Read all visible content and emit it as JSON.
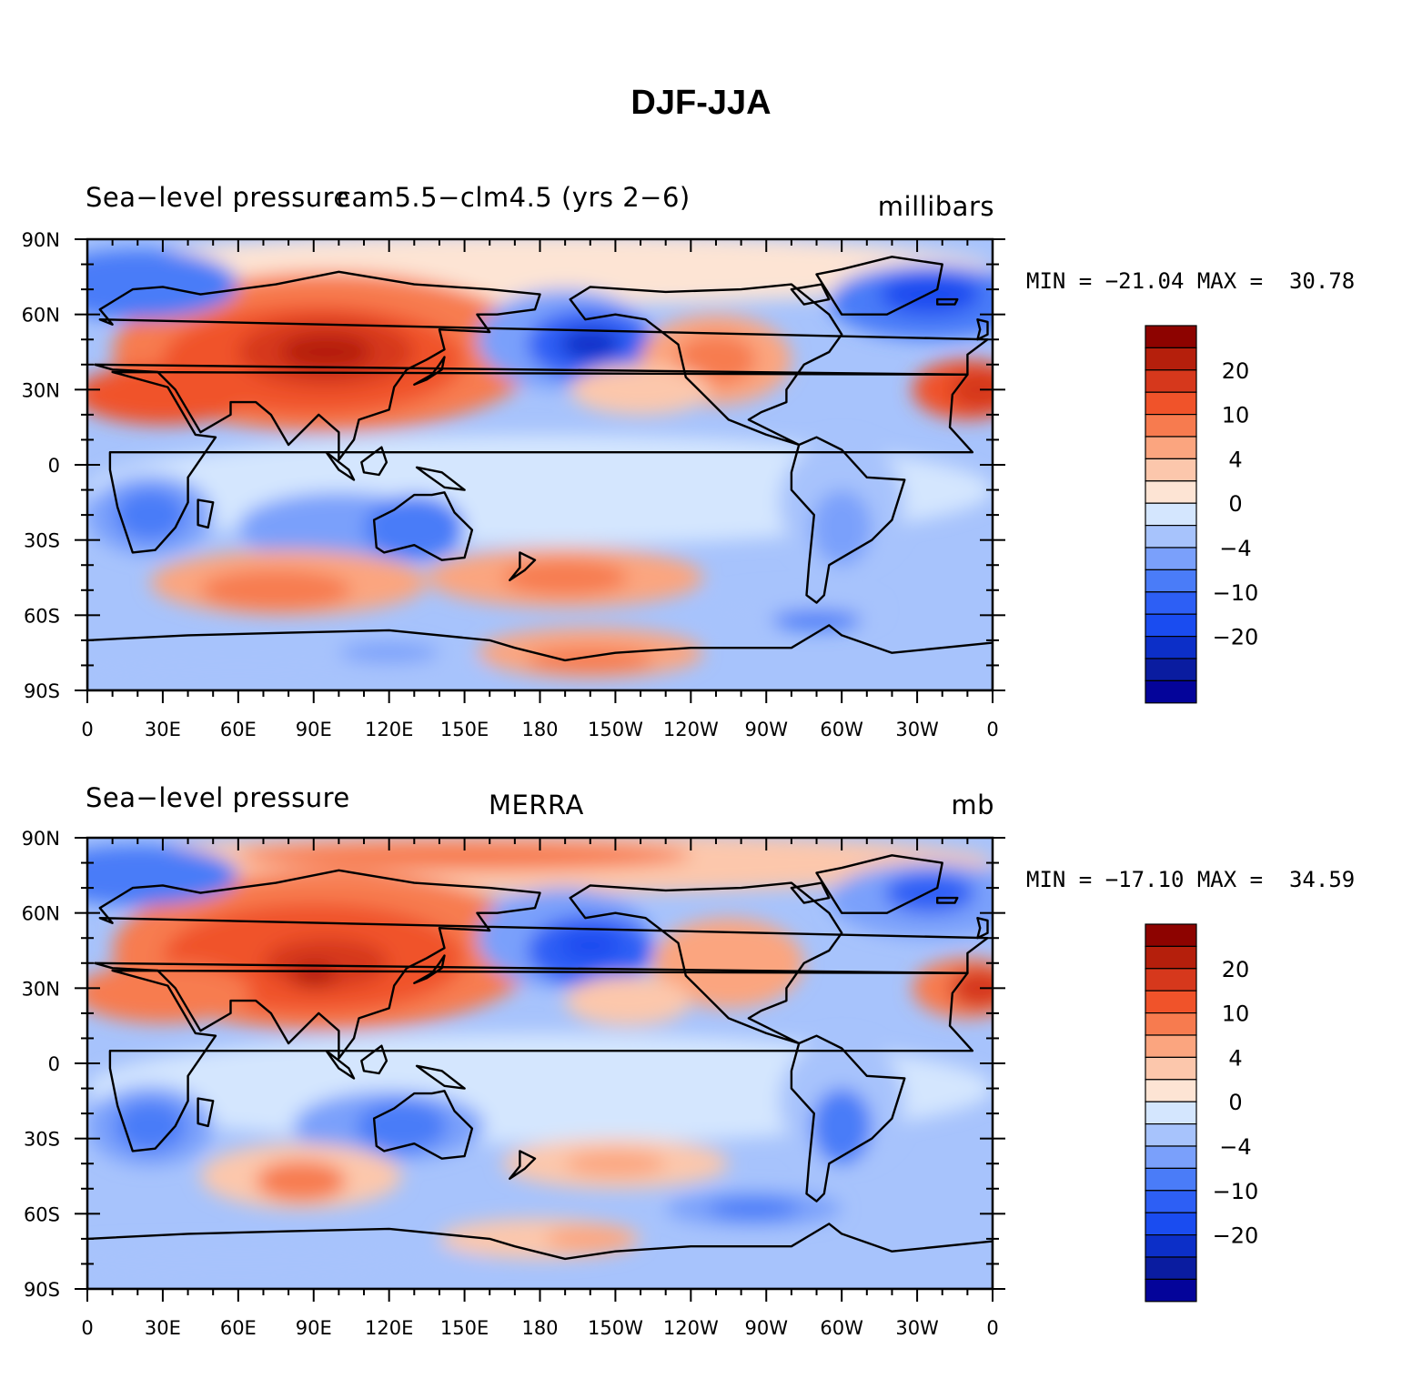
{
  "figure_title": "DJF-JJA",
  "colorbar_labels": [
    "20",
    "10",
    "4",
    "0",
    "−4",
    "−10",
    "−20"
  ],
  "x_ticks": [
    "0",
    "30E",
    "60E",
    "90E",
    "120E",
    "150E",
    "180",
    "150W",
    "120W",
    "90W",
    "60W",
    "30W",
    "0"
  ],
  "y_ticks": [
    "90N",
    "60N",
    "30N",
    "0",
    "30S",
    "60S",
    "90S"
  ],
  "panels": [
    {
      "left_label": "Sea−level pressure",
      "center_label": "cam5.5−clm4.5 (yrs 2−6)",
      "right_label": "millibars",
      "min_max": "MIN = −21.04 MAX =  30.78"
    },
    {
      "left_label": "Sea−level pressure",
      "center_label": "MERRA",
      "right_label": "mb",
      "min_max": "MIN = −17.10 MAX =  34.59"
    }
  ],
  "chart_data": {
    "type": "heatmap",
    "title": "DJF-JJA",
    "variable": "Sea−level pressure",
    "projection": "cylindrical equidistant, centered at 180",
    "lon_range": [
      0,
      360
    ],
    "lat_range": [
      -90,
      90
    ],
    "colorbar_levels": [
      -25,
      -20,
      -15,
      -10,
      -8,
      -6,
      -4,
      -2,
      0,
      2,
      4,
      6,
      8,
      10,
      15,
      20,
      25
    ],
    "colorbar_colors": [
      "#04049a",
      "#0a1ca0",
      "#0c2fc8",
      "#1a4cf0",
      "#2d5ff5",
      "#4a7cf8",
      "#7aa0fb",
      "#a7c3fc",
      "#d4e6fe",
      "#fde4d4",
      "#fcc7ac",
      "#fba57f",
      "#f77b4f",
      "#f0532a",
      "#d6381c",
      "#b51f0c",
      "#8d0300"
    ],
    "panels": [
      {
        "name": "cam5.5−clm4.5 (yrs 2−6)",
        "units": "millibars",
        "min": -21.04,
        "max": 30.78
      },
      {
        "name": "MERRA",
        "units": "mb",
        "min": -17.1,
        "max": 34.59
      }
    ]
  }
}
